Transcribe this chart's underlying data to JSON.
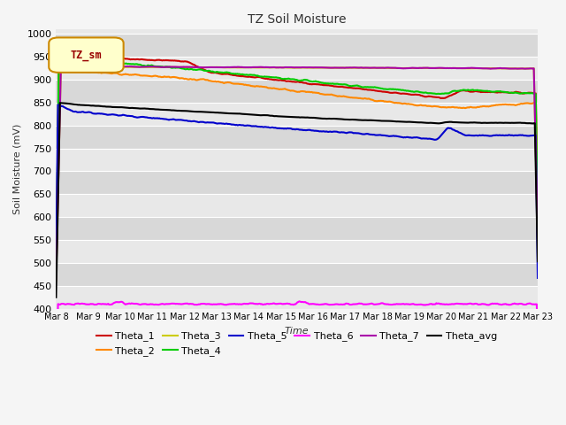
{
  "title": "TZ Soil Moisture",
  "ylabel": "Soil Moisture (mV)",
  "xlabel": "Time",
  "legend_label": "TZ_sm",
  "ylim": [
    400,
    1010
  ],
  "yticks": [
    400,
    450,
    500,
    550,
    600,
    650,
    700,
    750,
    800,
    850,
    900,
    950,
    1000
  ],
  "x_tick_labels": [
    "Mar 8",
    "Mar 9",
    "Mar 10",
    "Mar 11",
    "Mar 12",
    "Mar 13",
    "Mar 14",
    "Mar 15",
    "Mar 16",
    "Mar 17",
    "Mar 18",
    "Mar 19",
    "Mar 20",
    "Mar 21",
    "Mar 22",
    "Mar 23"
  ],
  "plot_bg_color": "#e8e8e8",
  "fig_bg_color": "#f5f5f5",
  "band_color_light": "#e8e8e8",
  "band_color_dark": "#d8d8d8",
  "grid_color": "#ffffff",
  "line_colors": {
    "Theta_1": "#cc0000",
    "Theta_2": "#ff8800",
    "Theta_3": "#cccc00",
    "Theta_4": "#00cc00",
    "Theta_5": "#0000cc",
    "Theta_6": "#ff00ff",
    "Theta_7": "#aa00aa",
    "Theta_avg": "#000000"
  }
}
